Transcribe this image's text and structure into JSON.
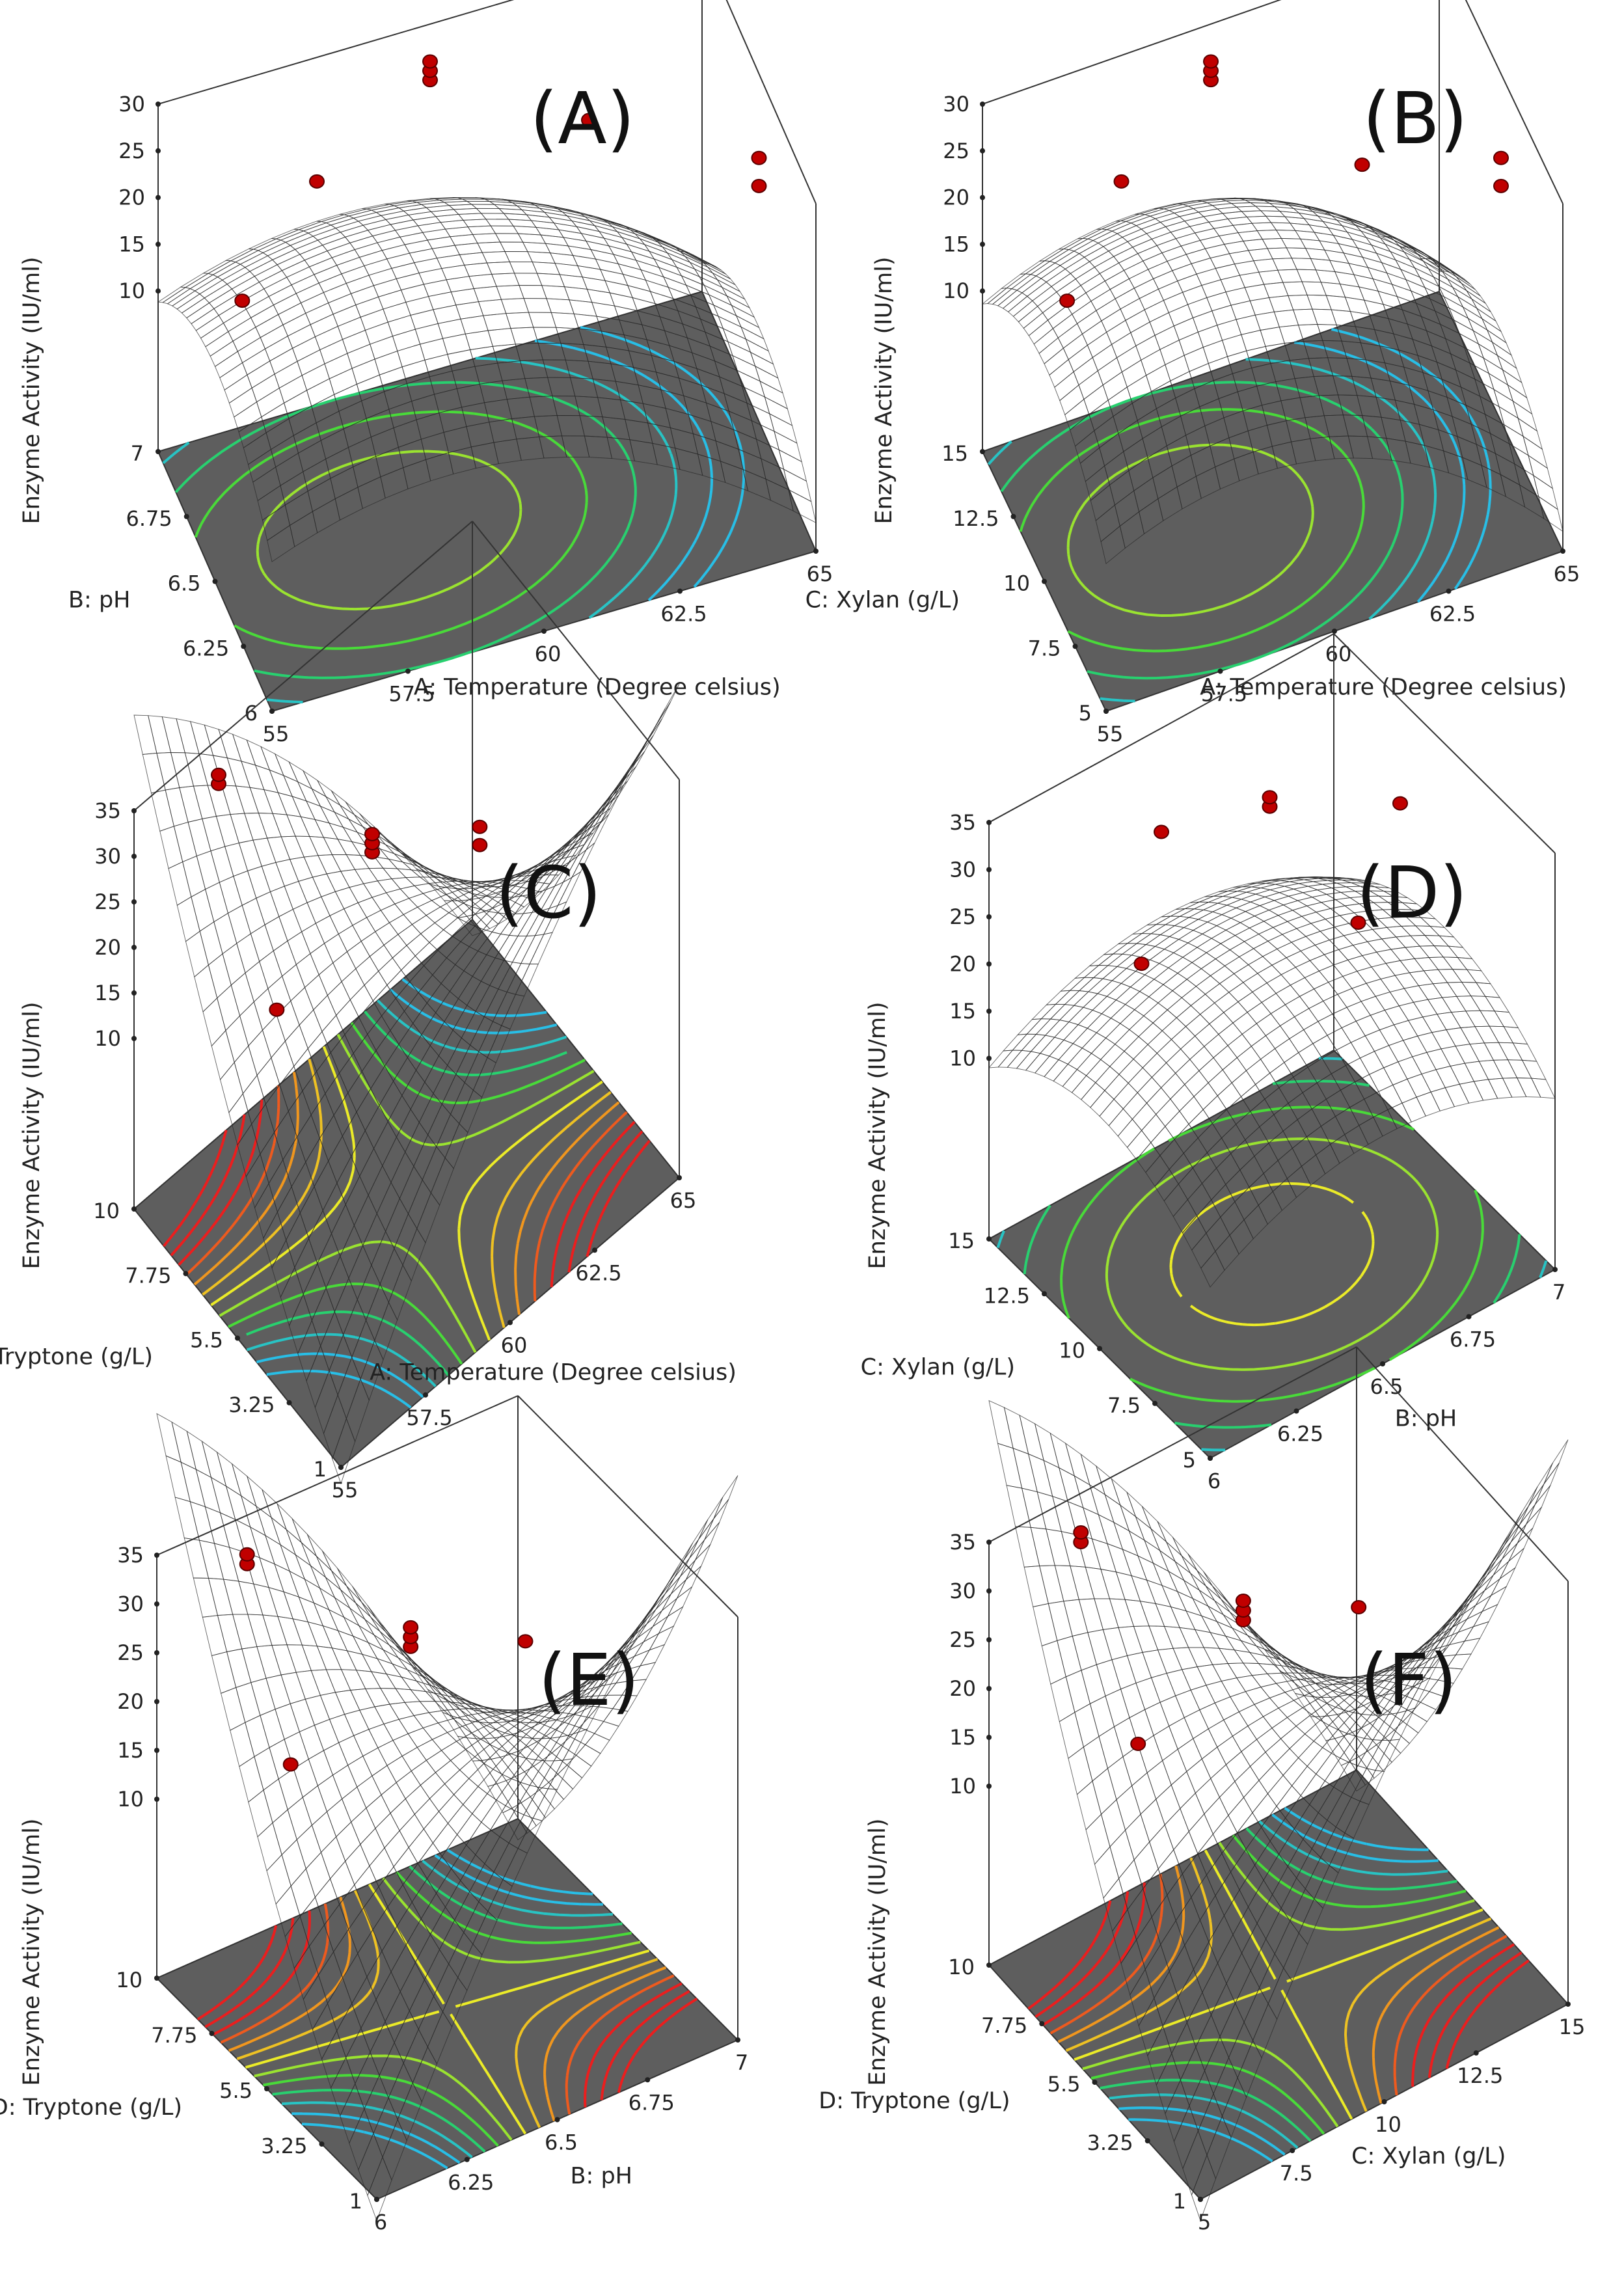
{
  "chart_data": [
    {
      "type": "surface",
      "label": "(A)",
      "xlabel": "A: Temperature (Degree celsius)",
      "ylabel": "B: pH",
      "zlabel": "Enzyme Activity (IU/ml)",
      "x_ticks": [
        "55",
        "57.5",
        "60",
        "62.5",
        "65"
      ],
      "y_ticks": [
        "6",
        "6.25",
        "6.5",
        "6.75",
        "7"
      ],
      "z_ticks": [
        "10",
        "15",
        "20",
        "25",
        "30"
      ],
      "xlim": [
        55,
        65
      ],
      "ylim": [
        6,
        7
      ],
      "zlim": [
        5,
        30
      ],
      "surface": {
        "peak": 19.5,
        "peak_x": 0.32,
        "peak_y": 0.5,
        "cx": -9.0,
        "cy": -7.0,
        "cxy": 0.0
      },
      "points": [
        {
          "x": 55.5,
          "y": 6.5,
          "z": 22
        },
        {
          "x": 57.5,
          "y": 6.8,
          "z": 23
        },
        {
          "x": 60,
          "y": 7,
          "z": 24
        },
        {
          "x": 60,
          "y": 7,
          "z": 25
        },
        {
          "x": 60,
          "y": 7,
          "z": 26
        },
        {
          "x": 62.5,
          "y": 6.8,
          "z": 21
        },
        {
          "x": 65,
          "y": 6.5,
          "z": 21
        },
        {
          "x": 65,
          "y": 6.5,
          "z": 18
        }
      ]
    },
    {
      "type": "surface",
      "label": "(B)",
      "xlabel": "A: Temperature (Degree celsius)",
      "ylabel": "C: Xylan (g/L)",
      "zlabel": "Enzyme Activity (IU/ml)",
      "x_ticks": [
        "55",
        "57.5",
        "60",
        "62.5",
        "65"
      ],
      "y_ticks": [
        "5",
        "7.5",
        "10",
        "12.5",
        "15"
      ],
      "z_ticks": [
        "10",
        "15",
        "20",
        "25",
        "30"
      ],
      "xlim": [
        55,
        65
      ],
      "ylim": [
        5,
        15
      ],
      "zlim": [
        5,
        30
      ],
      "surface": {
        "peak": 20.0,
        "peak_x": 0.32,
        "peak_y": 0.5,
        "cx": -9.5,
        "cy": -7.5,
        "cxy": 0.0
      },
      "points": [
        {
          "x": 55.5,
          "y": 10,
          "z": 22
        },
        {
          "x": 57.5,
          "y": 13,
          "z": 23
        },
        {
          "x": 60,
          "y": 15,
          "z": 24
        },
        {
          "x": 60,
          "y": 15,
          "z": 25
        },
        {
          "x": 60,
          "y": 15,
          "z": 26
        },
        {
          "x": 62.5,
          "y": 12,
          "z": 19
        },
        {
          "x": 65,
          "y": 10,
          "z": 21
        },
        {
          "x": 65,
          "y": 10,
          "z": 18
        }
      ]
    },
    {
      "type": "surface",
      "label": "(C)",
      "xlabel": "A: Temperature (Degree celsius)",
      "ylabel": "D: Tryptone (g/L)",
      "zlabel": "Enzyme Activity (IU/ml)",
      "x_ticks": [
        "55",
        "57.5",
        "60",
        "62.5",
        "65"
      ],
      "y_ticks": [
        "1",
        "3.25",
        "5.5",
        "7.75",
        "10"
      ],
      "z_ticks": [
        "10",
        "15",
        "20",
        "25",
        "30",
        "35"
      ],
      "xlim": [
        55,
        65
      ],
      "ylim": [
        1,
        10
      ],
      "zlim": [
        5,
        35
      ],
      "surface": {
        "peak": 18.5,
        "peak_x": 0.5,
        "peak_y": 0.5,
        "cx": -6.0,
        "cy": 5.0,
        "cxy": -28.0
      },
      "points": [
        {
          "x": 57.5,
          "y": 10,
          "z": 30
        },
        {
          "x": 57.5,
          "y": 10,
          "z": 31
        },
        {
          "x": 56.5,
          "y": 6,
          "z": 21
        },
        {
          "x": 60,
          "y": 7,
          "z": 24
        },
        {
          "x": 60,
          "y": 7,
          "z": 25
        },
        {
          "x": 60,
          "y": 7,
          "z": 26
        },
        {
          "x": 62.5,
          "y": 6,
          "z": 22
        },
        {
          "x": 62.5,
          "y": 6,
          "z": 20
        }
      ]
    },
    {
      "type": "surface",
      "label": "(D)",
      "xlabel": "B: pH",
      "ylabel": "C: Xylan (g/L)",
      "zlabel": "Enzyme Activity (IU/ml)",
      "x_ticks": [
        "6",
        "6.25",
        "6.5",
        "6.75",
        "7"
      ],
      "y_ticks": [
        "5",
        "7.5",
        "10",
        "12.5",
        "15"
      ],
      "z_ticks": [
        "10",
        "15",
        "20",
        "25",
        "30",
        "35"
      ],
      "xlim": [
        6,
        7
      ],
      "ylim": [
        5,
        15
      ],
      "zlim": [
        5,
        35
      ],
      "surface": {
        "peak": 21.5,
        "peak_x": 0.5,
        "peak_y": 0.5,
        "cx": -6.0,
        "cy": -6.5,
        "cxy": 0.0
      },
      "points": [
        {
          "x": 6.5,
          "y": 15,
          "z": 24
        },
        {
          "x": 6.75,
          "y": 14,
          "z": 24
        },
        {
          "x": 6.75,
          "y": 14,
          "z": 25
        },
        {
          "x": 7,
          "y": 12,
          "z": 24
        },
        {
          "x": 6.25,
          "y": 12,
          "z": 22
        },
        {
          "x": 6.75,
          "y": 10,
          "z": 21
        }
      ]
    },
    {
      "type": "surface",
      "label": "(E)",
      "xlabel": "B: pH",
      "ylabel": "D: Tryptone (g/L)",
      "zlabel": "Enzyme Activity (IU/ml)",
      "x_ticks": [
        "6",
        "6.25",
        "6.5",
        "6.75",
        "7"
      ],
      "y_ticks": [
        "1",
        "3.25",
        "5.5",
        "7.75",
        "10"
      ],
      "z_ticks": [
        "10",
        "15",
        "20",
        "25",
        "30",
        "35"
      ],
      "xlim": [
        6,
        7
      ],
      "ylim": [
        1,
        10
      ],
      "zlim": [
        5,
        35
      ],
      "surface": {
        "peak": 20.0,
        "peak_x": 0.5,
        "peak_y": 0.5,
        "cx": -6.0,
        "cy": 5.5,
        "cxy": -30.0
      },
      "points": [
        {
          "x": 6.25,
          "y": 10,
          "z": 30
        },
        {
          "x": 6.25,
          "y": 10,
          "z": 31
        },
        {
          "x": 6.1,
          "y": 6,
          "z": 22
        },
        {
          "x": 6.5,
          "y": 7,
          "z": 25
        },
        {
          "x": 6.5,
          "y": 7,
          "z": 26
        },
        {
          "x": 6.5,
          "y": 7,
          "z": 27
        },
        {
          "x": 6.75,
          "y": 6,
          "z": 24
        }
      ]
    },
    {
      "type": "surface",
      "label": "(F)",
      "xlabel": "C: Xylan (g/L)",
      "ylabel": "D: Tryptone (g/L)",
      "zlabel": "Enzyme Activity (IU/ml)",
      "x_ticks": [
        "5",
        "7.5",
        "10",
        "12.5",
        "15"
      ],
      "y_ticks": [
        "1",
        "3.25",
        "5.5",
        "7.75",
        "10"
      ],
      "z_ticks": [
        "10",
        "15",
        "20",
        "25",
        "30",
        "35"
      ],
      "xlim": [
        5,
        15
      ],
      "ylim": [
        1,
        10
      ],
      "zlim": [
        5,
        35
      ],
      "surface": {
        "peak": 20.0,
        "peak_x": 0.5,
        "peak_y": 0.5,
        "cx": -6.0,
        "cy": 5.5,
        "cxy": -30.0
      },
      "points": [
        {
          "x": 7.5,
          "y": 10,
          "z": 30
        },
        {
          "x": 7.5,
          "y": 10,
          "z": 31
        },
        {
          "x": 6.5,
          "y": 6,
          "z": 22
        },
        {
          "x": 10,
          "y": 7,
          "z": 25
        },
        {
          "x": 10,
          "y": 7,
          "z": 26
        },
        {
          "x": 10,
          "y": 7,
          "z": 27
        },
        {
          "x": 12.5,
          "y": 6,
          "z": 24
        }
      ]
    }
  ]
}
